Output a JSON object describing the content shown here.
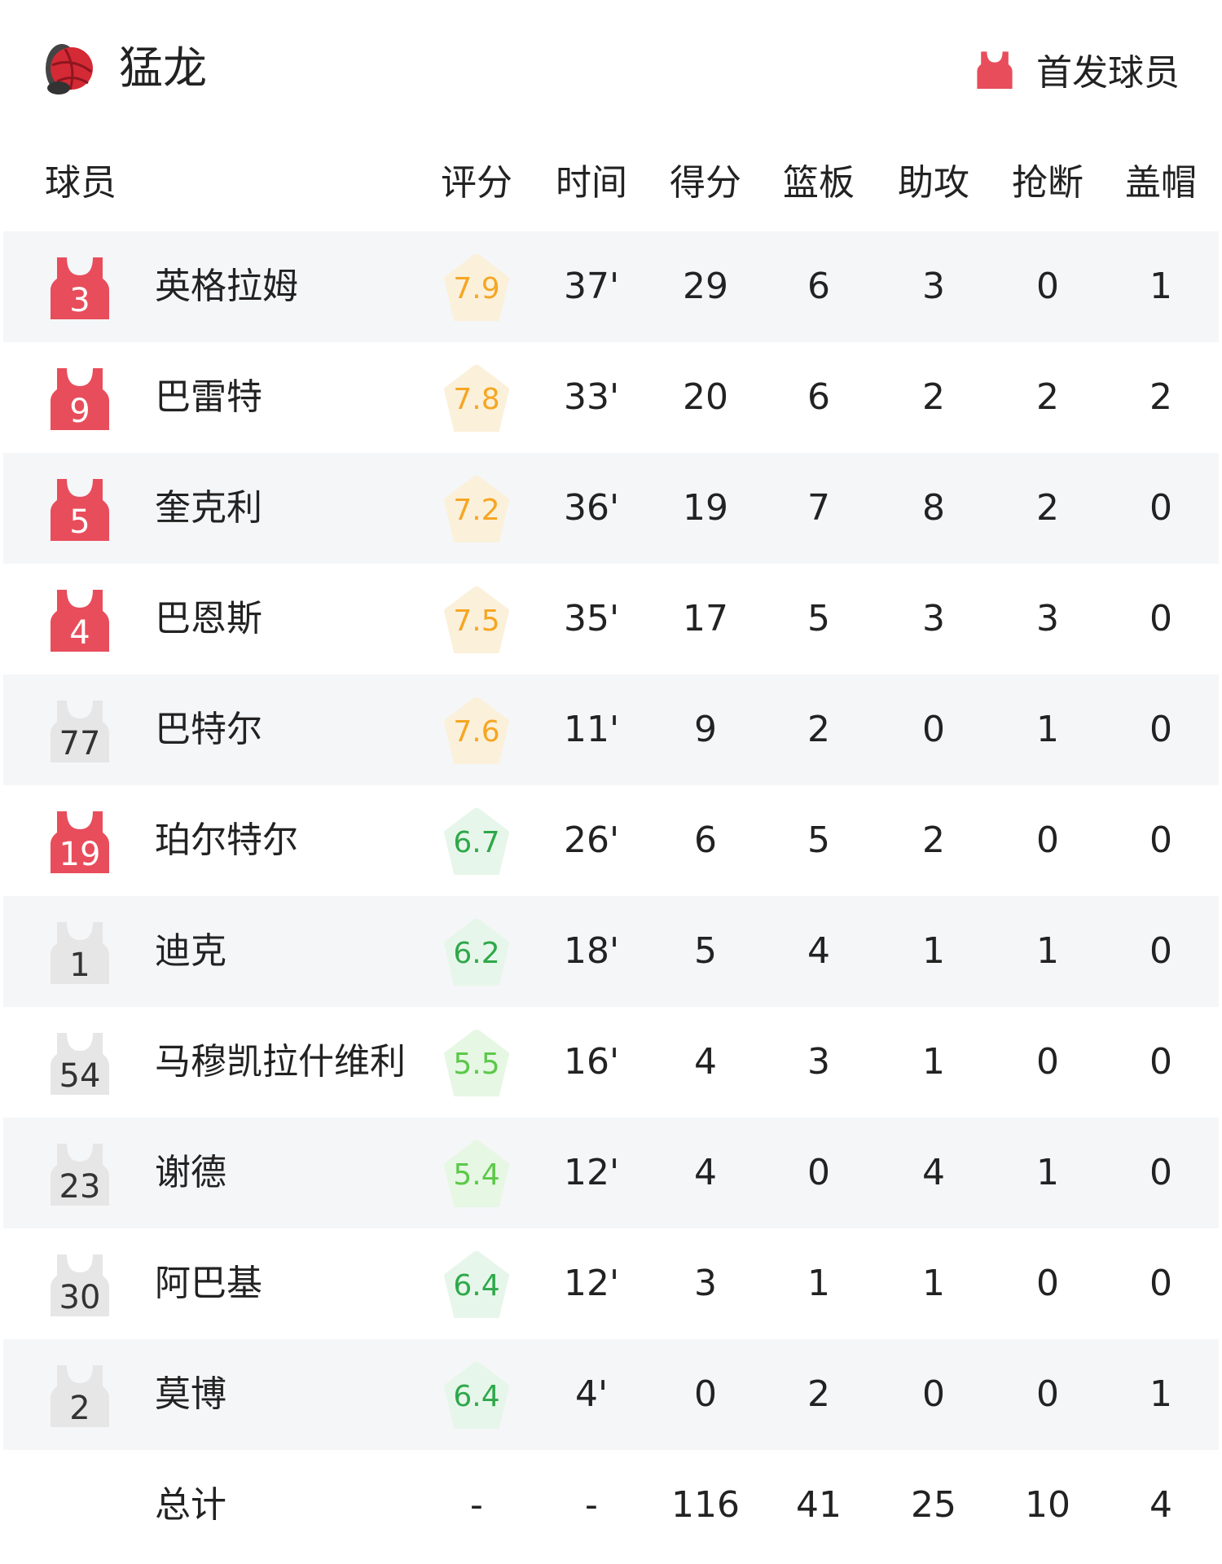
{
  "header": {
    "team_name": "猛龙",
    "team_logo_icon": "raptors-logo-icon",
    "starter_legend_label": "首发球员",
    "starter_color": "#e84d5b",
    "bench_color": "#e6e6e6"
  },
  "columns": [
    "球员",
    "评分",
    "时间",
    "得分",
    "篮板",
    "助攻",
    "抢断",
    "盖帽"
  ],
  "players": [
    {
      "number": "3",
      "name": "英格拉姆",
      "starter": true,
      "rating": "7.9",
      "time": "37'",
      "pts": "29",
      "reb": "6",
      "ast": "3",
      "stl": "0",
      "blk": "1"
    },
    {
      "number": "9",
      "name": "巴雷特",
      "starter": true,
      "rating": "7.8",
      "time": "33'",
      "pts": "20",
      "reb": "6",
      "ast": "2",
      "stl": "2",
      "blk": "2"
    },
    {
      "number": "5",
      "name": "奎克利",
      "starter": true,
      "rating": "7.2",
      "time": "36'",
      "pts": "19",
      "reb": "7",
      "ast": "8",
      "stl": "2",
      "blk": "0"
    },
    {
      "number": "4",
      "name": "巴恩斯",
      "starter": true,
      "rating": "7.5",
      "time": "35'",
      "pts": "17",
      "reb": "5",
      "ast": "3",
      "stl": "3",
      "blk": "0"
    },
    {
      "number": "77",
      "name": "巴特尔",
      "starter": false,
      "rating": "7.6",
      "time": "11'",
      "pts": "9",
      "reb": "2",
      "ast": "0",
      "stl": "1",
      "blk": "0"
    },
    {
      "number": "19",
      "name": "珀尔特尔",
      "starter": true,
      "rating": "6.7",
      "time": "26'",
      "pts": "6",
      "reb": "5",
      "ast": "2",
      "stl": "0",
      "blk": "0"
    },
    {
      "number": "1",
      "name": "迪克",
      "starter": false,
      "rating": "6.2",
      "time": "18'",
      "pts": "5",
      "reb": "4",
      "ast": "1",
      "stl": "1",
      "blk": "0"
    },
    {
      "number": "54",
      "name": "马穆凯拉什维利",
      "starter": false,
      "rating": "5.5",
      "time": "16'",
      "pts": "4",
      "reb": "3",
      "ast": "1",
      "stl": "0",
      "blk": "0"
    },
    {
      "number": "23",
      "name": "谢德",
      "starter": false,
      "rating": "5.4",
      "time": "12'",
      "pts": "4",
      "reb": "0",
      "ast": "4",
      "stl": "1",
      "blk": "0"
    },
    {
      "number": "30",
      "name": "阿巴基",
      "starter": false,
      "rating": "6.4",
      "time": "12'",
      "pts": "3",
      "reb": "1",
      "ast": "1",
      "stl": "0",
      "blk": "0"
    },
    {
      "number": "2",
      "name": "莫博",
      "starter": false,
      "rating": "6.4",
      "time": "4'",
      "pts": "0",
      "reb": "2",
      "ast": "0",
      "stl": "0",
      "blk": "1"
    }
  ],
  "totals": {
    "label": "总计",
    "rating": "-",
    "time": "-",
    "pts": "116",
    "reb": "41",
    "ast": "25",
    "stl": "10",
    "blk": "4"
  },
  "rating_colors": {
    "high_text": "#f5a623",
    "high_bg": "#fbf0da",
    "mid_text": "#2ea84a",
    "mid_bg": "#e7f6ea",
    "low_text": "#5cc84a",
    "low_bg": "#e6f7e4"
  }
}
